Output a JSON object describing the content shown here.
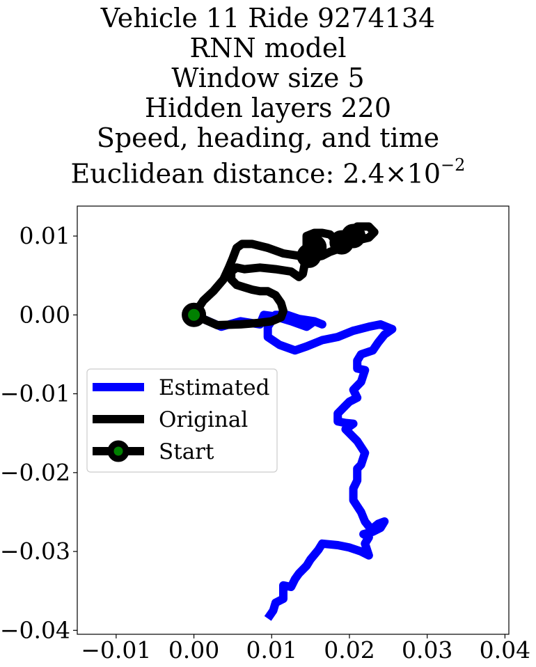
{
  "chart_data": {
    "type": "line",
    "title_lines": [
      "Vehicle 11 Ride 9274134",
      "RNN model",
      "Window size 5",
      "Hidden layers 220",
      "Speed, heading, and time"
    ],
    "metric": {
      "label": "Euclidean distance: ",
      "mantissa": "2.4",
      "times": "×",
      "base": "10",
      "exponent": "−2"
    },
    "xlabel": "",
    "ylabel": "",
    "xlim": [
      -0.015,
      0.0405
    ],
    "ylim": [
      -0.0405,
      0.0138
    ],
    "x_ticks": [
      -0.01,
      0.0,
      0.01,
      0.02,
      0.03,
      0.04
    ],
    "x_tick_labels": [
      "−0.01",
      "0.00",
      "0.01",
      "0.02",
      "0.03",
      "0.04"
    ],
    "y_ticks": [
      0.01,
      0.0,
      -0.01,
      -0.02,
      -0.03,
      -0.04
    ],
    "y_tick_labels": [
      "0.01",
      "0.00",
      "−0.01",
      "−0.02",
      "−0.03",
      "−0.04"
    ],
    "grid": false,
    "legend_position": "center-left",
    "series": [
      {
        "name": "Estimated",
        "color": "#0000ff",
        "points": [
          [
            0.0,
            0.0
          ],
          [
            0.0035,
            -0.0015
          ],
          [
            0.006,
            -0.0008
          ],
          [
            0.0085,
            -0.0012
          ],
          [
            0.009,
            0.0
          ],
          [
            0.0105,
            -0.0002
          ],
          [
            0.0125,
            -0.0008
          ],
          [
            0.0145,
            -0.0015
          ],
          [
            0.0155,
            -0.0008
          ],
          [
            0.0165,
            -0.0012
          ],
          [
            0.0155,
            -0.0008
          ],
          [
            0.0135,
            -0.0005
          ],
          [
            0.012,
            0.0
          ],
          [
            0.0105,
            0.0
          ],
          [
            0.0095,
            -0.0015
          ],
          [
            0.0095,
            -0.0028
          ],
          [
            0.011,
            -0.0038
          ],
          [
            0.013,
            -0.0045
          ],
          [
            0.0145,
            -0.004
          ],
          [
            0.0165,
            -0.0032
          ],
          [
            0.0185,
            -0.0028
          ],
          [
            0.0205,
            -0.002
          ],
          [
            0.0225,
            -0.0015
          ],
          [
            0.024,
            -0.0012
          ],
          [
            0.0255,
            -0.0018
          ],
          [
            0.0245,
            -0.0025
          ],
          [
            0.0237,
            -0.0035
          ],
          [
            0.023,
            -0.0045
          ],
          [
            0.0215,
            -0.005
          ],
          [
            0.021,
            -0.0058
          ],
          [
            0.021,
            -0.0068
          ],
          [
            0.022,
            -0.007
          ],
          [
            0.0215,
            -0.0085
          ],
          [
            0.0205,
            -0.0095
          ],
          [
            0.021,
            -0.0105
          ],
          [
            0.02,
            -0.011
          ],
          [
            0.0195,
            -0.0115
          ],
          [
            0.0185,
            -0.0125
          ],
          [
            0.0185,
            -0.0135
          ],
          [
            0.0195,
            -0.0137
          ],
          [
            0.0205,
            -0.0138
          ],
          [
            0.0195,
            -0.0145
          ],
          [
            0.021,
            -0.016
          ],
          [
            0.022,
            -0.0175
          ],
          [
            0.0215,
            -0.019
          ],
          [
            0.021,
            -0.0195
          ],
          [
            0.021,
            -0.021
          ],
          [
            0.0205,
            -0.022
          ],
          [
            0.0205,
            -0.0235
          ],
          [
            0.0215,
            -0.025
          ],
          [
            0.022,
            -0.0262
          ],
          [
            0.0228,
            -0.0272
          ],
          [
            0.0237,
            -0.0265
          ],
          [
            0.0245,
            -0.0262
          ],
          [
            0.024,
            -0.027
          ],
          [
            0.023,
            -0.0275
          ],
          [
            0.0218,
            -0.0278
          ],
          [
            0.0225,
            -0.0282
          ],
          [
            0.022,
            -0.029
          ],
          [
            0.0225,
            -0.0305
          ],
          [
            0.0215,
            -0.03
          ],
          [
            0.02,
            -0.0295
          ],
          [
            0.0185,
            -0.0292
          ],
          [
            0.0165,
            -0.029
          ],
          [
            0.016,
            -0.0298
          ],
          [
            0.015,
            -0.031
          ],
          [
            0.0145,
            -0.0318
          ],
          [
            0.0135,
            -0.0328
          ],
          [
            0.013,
            -0.0335
          ],
          [
            0.0125,
            -0.0345
          ],
          [
            0.0115,
            -0.0343
          ],
          [
            0.0115,
            -0.036
          ],
          [
            0.0105,
            -0.0365
          ],
          [
            0.0102,
            -0.0375
          ],
          [
            0.0095,
            -0.0385
          ]
        ]
      },
      {
        "name": "Original",
        "color": "#000000",
        "points": [
          [
            0.0,
            0.0
          ],
          [
            0.003,
            -0.0013
          ],
          [
            0.006,
            -0.0012
          ],
          [
            0.0085,
            -0.001
          ],
          [
            0.01,
            -0.0008
          ],
          [
            0.0112,
            -0.0003
          ],
          [
            0.0115,
            0.0005
          ],
          [
            0.0112,
            0.0015
          ],
          [
            0.0105,
            0.0025
          ],
          [
            0.0095,
            0.003
          ],
          [
            0.0085,
            0.003
          ],
          [
            0.0075,
            0.0032
          ],
          [
            0.0065,
            0.0035
          ],
          [
            0.0055,
            0.0038
          ],
          [
            0.0048,
            0.0045
          ],
          [
            0.0048,
            0.0055
          ],
          [
            0.0055,
            0.006
          ],
          [
            0.0065,
            0.0058
          ],
          [
            0.0085,
            0.006
          ],
          [
            0.0105,
            0.0058
          ],
          [
            0.0125,
            0.0055
          ],
          [
            0.0135,
            0.0048
          ],
          [
            0.014,
            0.0052
          ],
          [
            0.0142,
            0.0062
          ],
          [
            0.0145,
            0.007
          ],
          [
            0.0152,
            0.0072
          ],
          [
            0.0165,
            0.0075
          ],
          [
            0.0175,
            0.008
          ],
          [
            0.019,
            0.0085
          ],
          [
            0.02,
            0.009
          ],
          [
            0.0212,
            0.0095
          ],
          [
            0.0225,
            0.0098
          ],
          [
            0.0232,
            0.0105
          ],
          [
            0.0225,
            0.0112
          ],
          [
            0.021,
            0.0112
          ],
          [
            0.02,
            0.0105
          ],
          [
            0.0195,
            0.0097
          ],
          [
            0.0185,
            0.0092
          ],
          [
            0.018,
            0.0097
          ],
          [
            0.0175,
            0.0102
          ],
          [
            0.0165,
            0.0104
          ],
          [
            0.0155,
            0.0104
          ],
          [
            0.0145,
            0.01
          ],
          [
            0.0145,
            0.009
          ],
          [
            0.015,
            0.0082
          ],
          [
            0.0135,
            0.0075
          ],
          [
            0.0115,
            0.0078
          ],
          [
            0.0095,
            0.0085
          ],
          [
            0.0075,
            0.009
          ],
          [
            0.0062,
            0.009
          ],
          [
            0.0055,
            0.0085
          ],
          [
            0.005,
            0.0072
          ],
          [
            0.0045,
            0.006
          ],
          [
            0.0038,
            0.0045
          ],
          [
            0.0025,
            0.003
          ],
          [
            0.0012,
            0.0018
          ],
          [
            0.0,
            0.0
          ]
        ]
      }
    ],
    "markers": [
      {
        "name": "Start",
        "x": 0.0,
        "y": 0.0,
        "edge_color": "#000000",
        "face_color": "#008000"
      },
      {
        "name": "",
        "x": 0.0148,
        "y": 0.0075,
        "edge_color": "#000000",
        "face_color": "#000000"
      },
      {
        "name": "",
        "x": 0.0155,
        "y": 0.0086,
        "edge_color": "#000000",
        "face_color": "#000000"
      },
      {
        "name": "",
        "x": 0.019,
        "y": 0.0092,
        "edge_color": "#000000",
        "face_color": "#000000"
      },
      {
        "name": "",
        "x": 0.0205,
        "y": 0.01,
        "edge_color": "#000000",
        "face_color": "#000000"
      }
    ],
    "legend": [
      {
        "label": "Estimated",
        "color": "#0000ff",
        "type": "line"
      },
      {
        "label": "Original",
        "color": "#000000",
        "type": "line"
      },
      {
        "label": "Start",
        "color": "#000000",
        "type": "marker",
        "face_color": "#008000"
      }
    ]
  }
}
